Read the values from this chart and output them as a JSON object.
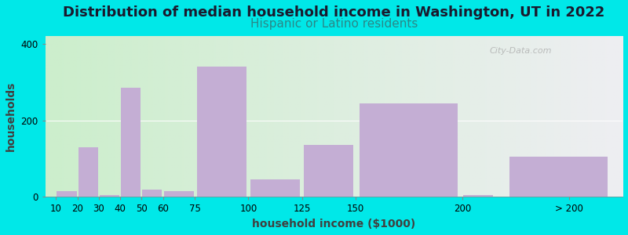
{
  "title": "Distribution of median household income in Washington, UT in 2022",
  "subtitle": "Hispanic or Latino residents",
  "xlabel": "household income ($1000)",
  "ylabel": "households",
  "bar_color": "#c4aed4",
  "background_color": "#00e8e8",
  "ylim": [
    0,
    420
  ],
  "yticks": [
    0,
    200,
    400
  ],
  "title_fontsize": 13,
  "subtitle_fontsize": 11,
  "subtitle_color": "#2a8888",
  "title_color": "#1a1a2e",
  "axis_label_fontsize": 10,
  "tick_fontsize": 8.5,
  "watermark": "City-Data.com",
  "xtick_labels": [
    "10",
    "20",
    "30",
    "40",
    "50",
    "60",
    "75",
    "100",
    "125",
    "150",
    "200",
    "> 200"
  ],
  "xtick_positions": [
    10,
    20,
    30,
    40,
    50,
    60,
    75,
    100,
    125,
    150,
    200,
    250
  ],
  "bar_lefts": [
    10,
    20,
    30,
    40,
    50,
    60,
    75,
    100,
    125,
    150,
    200,
    220
  ],
  "bar_rights": [
    20,
    30,
    40,
    50,
    60,
    75,
    100,
    125,
    150,
    200,
    215,
    270
  ],
  "bar_values": [
    15,
    130,
    5,
    285,
    20,
    15,
    340,
    45,
    135,
    245,
    5,
    105
  ],
  "xmin": 5,
  "xmax": 275,
  "grid_y": 200
}
